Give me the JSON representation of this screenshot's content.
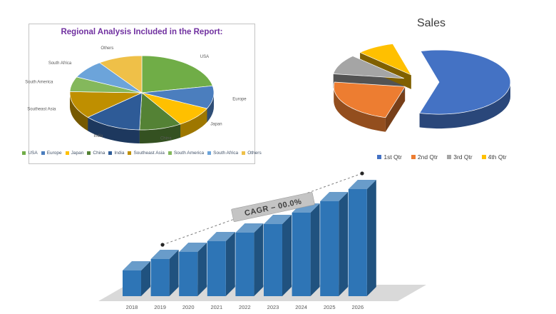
{
  "page": {
    "background": "#FFFFFF"
  },
  "chart_data": [
    {
      "id": "regional-pie",
      "type": "pie",
      "style": "3d",
      "title": "Regional Analysis Included in the Report:",
      "title_color": "#7030A0",
      "labels": [
        "USA",
        "Europe",
        "Japan",
        "China",
        "India",
        "Southeast Asia",
        "South America",
        "South Africa",
        "Others"
      ],
      "values": [
        22,
        10,
        9,
        9.5,
        13,
        12,
        6.5,
        8,
        10
      ],
      "values_note": "estimated share percent; no data labels shown in image",
      "colors": [
        "#70AD47",
        "#4B7EBE",
        "#FFC000",
        "#548235",
        "#2E5B97",
        "#BF8F00",
        "#84B85C",
        "#6CA4DA",
        "#EFC048"
      ],
      "start_angle": 0,
      "legend_position": "bottom",
      "label_color": "#595959"
    },
    {
      "id": "sales-pie",
      "type": "pie",
      "style": "3d-exploded",
      "title": "Sales",
      "labels": [
        "1st Qtr",
        "2nd Qtr",
        "3rd Qtr",
        "4th Qtr"
      ],
      "values": [
        8.2,
        3.2,
        1.4,
        1.2
      ],
      "values_note": "estimated proportions ~59/23/10/9 percent",
      "colors": [
        "#4472C4",
        "#ED7D31",
        "#A5A5A5",
        "#FFC000"
      ],
      "start_angle": -15,
      "explode": 0.26,
      "legend_position": "bottom"
    },
    {
      "id": "growth-bars",
      "type": "bar",
      "style": "3d",
      "categories": [
        "2018",
        "2019",
        "2020",
        "2021",
        "2022",
        "2023",
        "2024",
        "2025",
        "2026"
      ],
      "values": [
        36,
        52,
        62,
        77,
        89,
        101,
        117,
        133,
        150
      ],
      "values_note": "relative bar heights; no value axis shown",
      "bar_color": "#2E75B6",
      "floor_color": "#D9D9D9",
      "axis_label_color": "#595959",
      "annotation": "CAGR – 00.0%",
      "trendline": true
    }
  ]
}
